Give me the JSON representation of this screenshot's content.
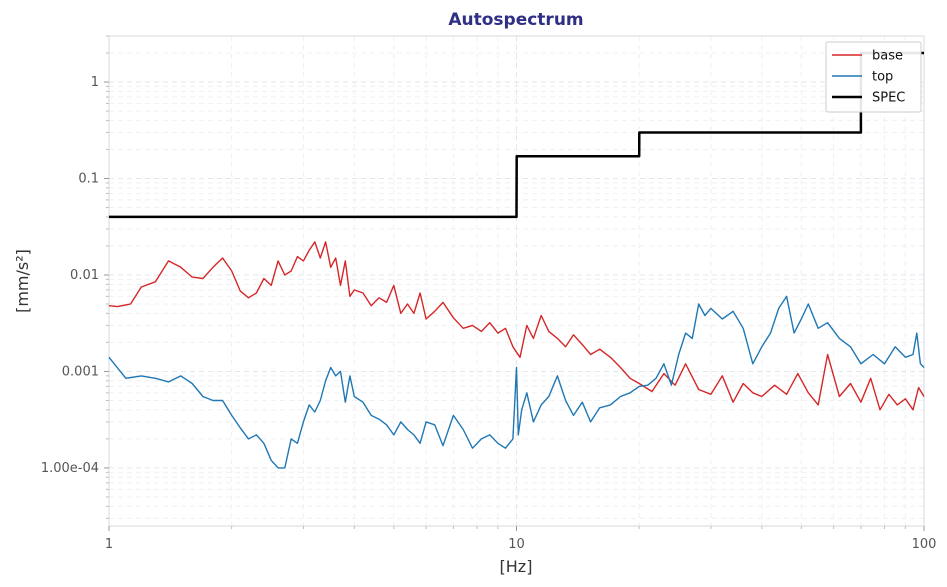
{
  "chart_data": {
    "type": "line",
    "title": "Autospectrum",
    "xlabel": "[Hz]",
    "ylabel": "[mm/s²]",
    "xscale": "log",
    "yscale": "log",
    "xlim": [
      1,
      100
    ],
    "ylim": [
      2.5e-05,
      3
    ],
    "x_ticks": [
      {
        "value": 1,
        "label": "1"
      },
      {
        "value": 10,
        "label": "10"
      },
      {
        "value": 100,
        "label": "100"
      }
    ],
    "y_ticks": [
      {
        "value": 0.0001,
        "label": "1.00e-04"
      },
      {
        "value": 0.001,
        "label": "0.001"
      },
      {
        "value": 0.01,
        "label": "0.01"
      },
      {
        "value": 0.1,
        "label": "0.1"
      },
      {
        "value": 1,
        "label": "1"
      }
    ],
    "grid": true,
    "legend_position": "top-right",
    "series": [
      {
        "name": "base",
        "color": "#d62728",
        "x": [
          1,
          1.05,
          1.13,
          1.2,
          1.3,
          1.4,
          1.5,
          1.6,
          1.7,
          1.8,
          1.9,
          2.0,
          2.1,
          2.2,
          2.3,
          2.4,
          2.5,
          2.6,
          2.7,
          2.8,
          2.9,
          3.0,
          3.1,
          3.2,
          3.3,
          3.4,
          3.5,
          3.6,
          3.7,
          3.8,
          3.9,
          4.0,
          4.2,
          4.4,
          4.6,
          4.8,
          5.0,
          5.2,
          5.4,
          5.6,
          5.8,
          6.0,
          6.3,
          6.6,
          7.0,
          7.4,
          7.8,
          8.2,
          8.6,
          9.0,
          9.4,
          9.8,
          10.2,
          10.6,
          11.0,
          11.5,
          12.0,
          12.6,
          13.2,
          13.8,
          14.5,
          15.2,
          16.0,
          17.0,
          18.0,
          19.0,
          20.0,
          21.5,
          23.0,
          24.5,
          26.0,
          28.0,
          30.0,
          32.0,
          34.0,
          36.0,
          38.0,
          40.0,
          43.0,
          46.0,
          49.0,
          52.0,
          55.0,
          58.0,
          62.0,
          66.0,
          70.0,
          74.0,
          78.0,
          82.0,
          86.0,
          90.0,
          94.0,
          97.0,
          100.0
        ],
        "y": [
          0.0048,
          0.0047,
          0.005,
          0.0075,
          0.0085,
          0.014,
          0.012,
          0.0095,
          0.0092,
          0.012,
          0.015,
          0.011,
          0.0068,
          0.0058,
          0.0065,
          0.0092,
          0.0078,
          0.014,
          0.01,
          0.011,
          0.0155,
          0.014,
          0.018,
          0.022,
          0.015,
          0.022,
          0.012,
          0.015,
          0.0078,
          0.014,
          0.006,
          0.007,
          0.0065,
          0.0048,
          0.0058,
          0.0052,
          0.0078,
          0.004,
          0.005,
          0.004,
          0.0065,
          0.0035,
          0.0042,
          0.0052,
          0.0036,
          0.0028,
          0.003,
          0.0026,
          0.0032,
          0.0025,
          0.0028,
          0.0018,
          0.0014,
          0.003,
          0.0022,
          0.0038,
          0.0026,
          0.0022,
          0.0018,
          0.0024,
          0.0019,
          0.0015,
          0.0017,
          0.0014,
          0.0011,
          0.00085,
          0.00075,
          0.00062,
          0.00095,
          0.00072,
          0.0012,
          0.00065,
          0.00058,
          0.0009,
          0.00048,
          0.00075,
          0.0006,
          0.00055,
          0.00072,
          0.00058,
          0.00095,
          0.0006,
          0.00045,
          0.0015,
          0.00055,
          0.00075,
          0.00048,
          0.00085,
          0.0004,
          0.00058,
          0.00045,
          0.00052,
          0.0004,
          0.00068,
          0.00055
        ]
      },
      {
        "name": "top",
        "color": "#1f77b4",
        "x": [
          1,
          1.1,
          1.2,
          1.3,
          1.4,
          1.5,
          1.6,
          1.7,
          1.8,
          1.9,
          2.0,
          2.1,
          2.2,
          2.3,
          2.4,
          2.5,
          2.6,
          2.7,
          2.8,
          2.9,
          3.0,
          3.1,
          3.2,
          3.3,
          3.4,
          3.5,
          3.6,
          3.7,
          3.8,
          3.9,
          4.0,
          4.2,
          4.4,
          4.6,
          4.8,
          5.0,
          5.2,
          5.4,
          5.6,
          5.8,
          6.0,
          6.3,
          6.6,
          7.0,
          7.4,
          7.8,
          8.2,
          8.6,
          9.0,
          9.4,
          9.8,
          10.0,
          10.1,
          10.3,
          10.6,
          11.0,
          11.5,
          12.0,
          12.6,
          13.2,
          13.8,
          14.5,
          15.2,
          16.0,
          17.0,
          18.0,
          19.0,
          20.0,
          21.0,
          22.0,
          23.0,
          24.0,
          25.0,
          26.0,
          27.0,
          28.0,
          29.0,
          30.0,
          32.0,
          34.0,
          36.0,
          38.0,
          40.0,
          42.0,
          44.0,
          46.0,
          48.0,
          50.0,
          52.0,
          55.0,
          58.0,
          62.0,
          66.0,
          70.0,
          75.0,
          80.0,
          85.0,
          90.0,
          94.0,
          96.0,
          98.0,
          100.0
        ],
        "y": [
          0.0014,
          0.00085,
          0.0009,
          0.00085,
          0.00078,
          0.0009,
          0.00075,
          0.00055,
          0.0005,
          0.0005,
          0.00035,
          0.00026,
          0.0002,
          0.00022,
          0.00018,
          0.00012,
          0.0001,
          0.0001,
          0.0002,
          0.00018,
          0.0003,
          0.00045,
          0.00038,
          0.0005,
          0.0008,
          0.0011,
          0.0009,
          0.001,
          0.00048,
          0.0009,
          0.00055,
          0.00048,
          0.00035,
          0.00032,
          0.00028,
          0.00022,
          0.0003,
          0.00025,
          0.00022,
          0.00018,
          0.0003,
          0.00028,
          0.00017,
          0.00035,
          0.00025,
          0.00016,
          0.0002,
          0.00022,
          0.00018,
          0.00016,
          0.0002,
          0.0011,
          0.00022,
          0.0004,
          0.0006,
          0.0003,
          0.00045,
          0.00055,
          0.0009,
          0.0005,
          0.00035,
          0.00048,
          0.0003,
          0.00042,
          0.00045,
          0.00055,
          0.0006,
          0.0007,
          0.00072,
          0.00085,
          0.0012,
          0.00072,
          0.0015,
          0.0025,
          0.0022,
          0.005,
          0.0038,
          0.0045,
          0.0035,
          0.0042,
          0.0028,
          0.0012,
          0.0018,
          0.0025,
          0.0045,
          0.006,
          0.0025,
          0.0035,
          0.005,
          0.0028,
          0.0032,
          0.0022,
          0.0018,
          0.0012,
          0.0015,
          0.0012,
          0.0018,
          0.0014,
          0.0015,
          0.0025,
          0.0012,
          0.0011
        ]
      },
      {
        "name": "SPEC",
        "color": "#000000",
        "x": [
          1,
          10,
          10.01,
          20,
          20.01,
          70,
          70.01,
          100
        ],
        "y": [
          0.04,
          0.04,
          0.17,
          0.17,
          0.3,
          0.3,
          2.0,
          2.0
        ]
      }
    ]
  }
}
